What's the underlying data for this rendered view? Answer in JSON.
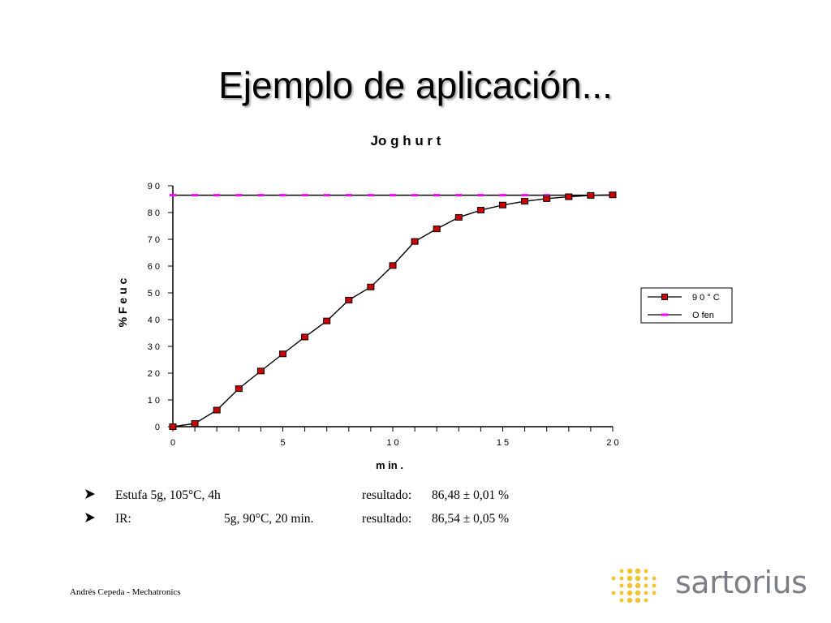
{
  "slide": {
    "title": "Ejemplo de aplicación...",
    "footer": "Andrés Cepeda - Mechatronics",
    "logo_text": "sartorius",
    "bullets": [
      {
        "label": "Estufa 5g, 105°C, 4h",
        "detail": "",
        "result_label": "resultado:",
        "result_value": "86,48 ± 0,01 %"
      },
      {
        "label": "IR:",
        "detail": "5g, 90°C, 20 min.",
        "result_label": "resultado:",
        "result_value": "86,54 ± 0,05 %"
      }
    ]
  },
  "chart_data": {
    "type": "line",
    "title": "Jo g h u r t",
    "xlabel": "m in .",
    "ylabel": "% F e u c",
    "xlim": [
      0,
      20
    ],
    "ylim": [
      0,
      90
    ],
    "x_ticks": [
      0,
      5,
      10,
      15,
      20
    ],
    "x_tick_labels": [
      "0",
      "5",
      "1 0",
      "1 5",
      "2 0"
    ],
    "y_ticks": [
      0,
      10,
      20,
      30,
      40,
      50,
      60,
      70,
      80,
      90
    ],
    "y_tick_labels": [
      "0",
      "1 0",
      "2 0",
      "3 0",
      "4 0",
      "5 0",
      "6 0",
      "7 0",
      "8 0",
      "9 0"
    ],
    "grid": false,
    "legend": "right",
    "series": [
      {
        "name": "9 0 ° C",
        "color": "#cc0000",
        "marker": "square",
        "x": [
          0,
          1,
          2,
          3,
          4,
          5,
          6,
          7,
          8,
          9,
          10,
          11,
          12,
          13,
          14,
          15,
          16,
          17,
          18,
          19,
          20
        ],
        "values": [
          0,
          1.2,
          6.2,
          14.2,
          20.8,
          27.2,
          33.5,
          39.5,
          47.3,
          52.2,
          60.2,
          69.2,
          73.9,
          78.2,
          80.9,
          82.8,
          84.2,
          85.2,
          85.9,
          86.4,
          86.6
        ]
      },
      {
        "name": "O fen",
        "color": "#ff00ff",
        "marker": "dash",
        "line_color": "#000000",
        "x": [
          0,
          1,
          2,
          3,
          4,
          5,
          6,
          7,
          8,
          9,
          10,
          11,
          12,
          13,
          14,
          15,
          16,
          17,
          18,
          19,
          20
        ],
        "values": [
          86.48,
          86.48,
          86.48,
          86.48,
          86.48,
          86.48,
          86.48,
          86.48,
          86.48,
          86.48,
          86.48,
          86.48,
          86.48,
          86.48,
          86.48,
          86.48,
          86.48,
          86.48,
          86.48,
          86.48,
          86.48
        ]
      }
    ]
  }
}
